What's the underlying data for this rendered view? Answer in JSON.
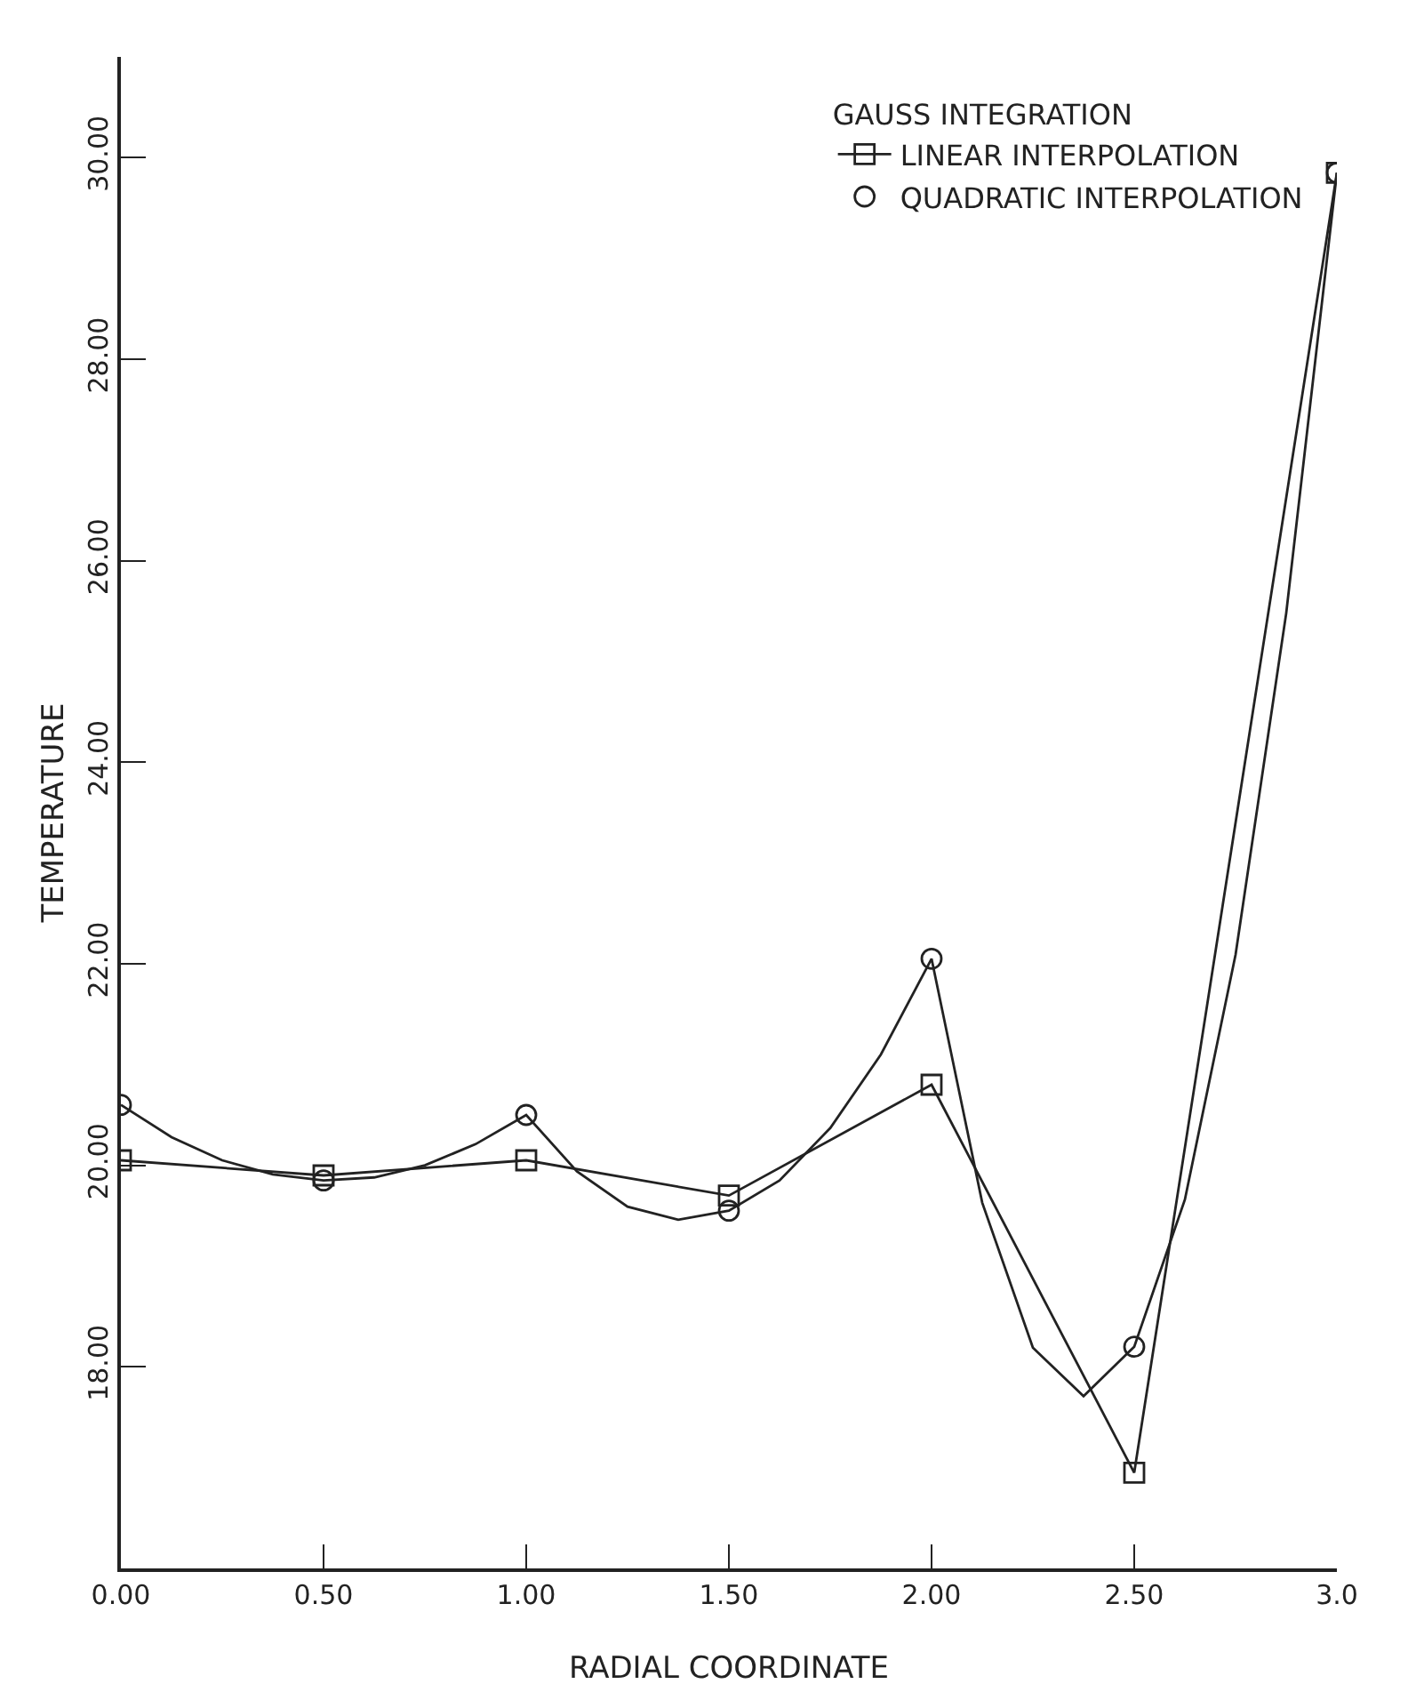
{
  "chart_data": {
    "type": "line",
    "xlabel": "RADIAL COORDINATE",
    "ylabel": "TEMPERATURE",
    "legend_title": "GAUSS INTEGRATION",
    "legend": "top right",
    "grid": false,
    "xlim": [
      0,
      3.0
    ],
    "xticks": [
      {
        "value": 0,
        "label": "0.00"
      },
      {
        "value": 0.5,
        "label": "0.50"
      },
      {
        "value": 1,
        "label": "1.00"
      },
      {
        "value": 1.5,
        "label": "1.50"
      },
      {
        "value": 2,
        "label": "2.00"
      },
      {
        "value": 2.5,
        "label": "2.50"
      },
      {
        "value": 3,
        "label": "3.0"
      }
    ],
    "ylim": [
      16,
      31
    ],
    "yticks": [
      {
        "value": 18,
        "label": "18.00"
      },
      {
        "value": 20,
        "label": "20.00"
      },
      {
        "value": 22,
        "label": "22.00"
      },
      {
        "value": 24,
        "label": "24.00"
      },
      {
        "value": 26,
        "label": "26.00"
      },
      {
        "value": 28,
        "label": "28.00"
      },
      {
        "value": 30,
        "label": "30.00"
      }
    ],
    "series": [
      {
        "name": "LINEAR INTERPOLATION",
        "marker": "square",
        "color": "#222222",
        "x": [
          0,
          0.5,
          1,
          1.5,
          2,
          2.5,
          3
        ],
        "values": [
          20.05,
          19.9,
          20.05,
          19.7,
          20.8,
          16.95,
          29.85
        ]
      },
      {
        "marker": "none",
        "color": "#222222",
        "x": [
          0,
          0.125,
          0.25,
          0.375,
          0.5,
          0.625,
          0.75,
          0.875,
          1,
          1.125,
          1.25,
          1.375,
          1.5,
          1.625,
          1.75,
          1.875,
          2,
          2.125,
          2.25,
          2.375,
          2.5,
          2.625,
          2.75,
          2.875,
          3
        ],
        "values": [
          20.6,
          20.28,
          20.05,
          19.91,
          19.85,
          19.88,
          20.0,
          20.21,
          20.5,
          19.94,
          19.59,
          19.46,
          19.55,
          19.85,
          20.37,
          21.1,
          22.05,
          19.63,
          18.19,
          17.71,
          18.2,
          19.66,
          22.09,
          25.48,
          29.85
        ]
      },
      {
        "name": "QUADRATIC INTERPOLATION",
        "type": "scatter",
        "marker": "circle",
        "color": "#222222",
        "x": [
          0,
          0.5,
          1,
          1.5,
          2,
          2.5,
          3
        ],
        "values": [
          20.6,
          19.85,
          20.5,
          19.55,
          22.05,
          18.2,
          29.85
        ]
      }
    ]
  }
}
